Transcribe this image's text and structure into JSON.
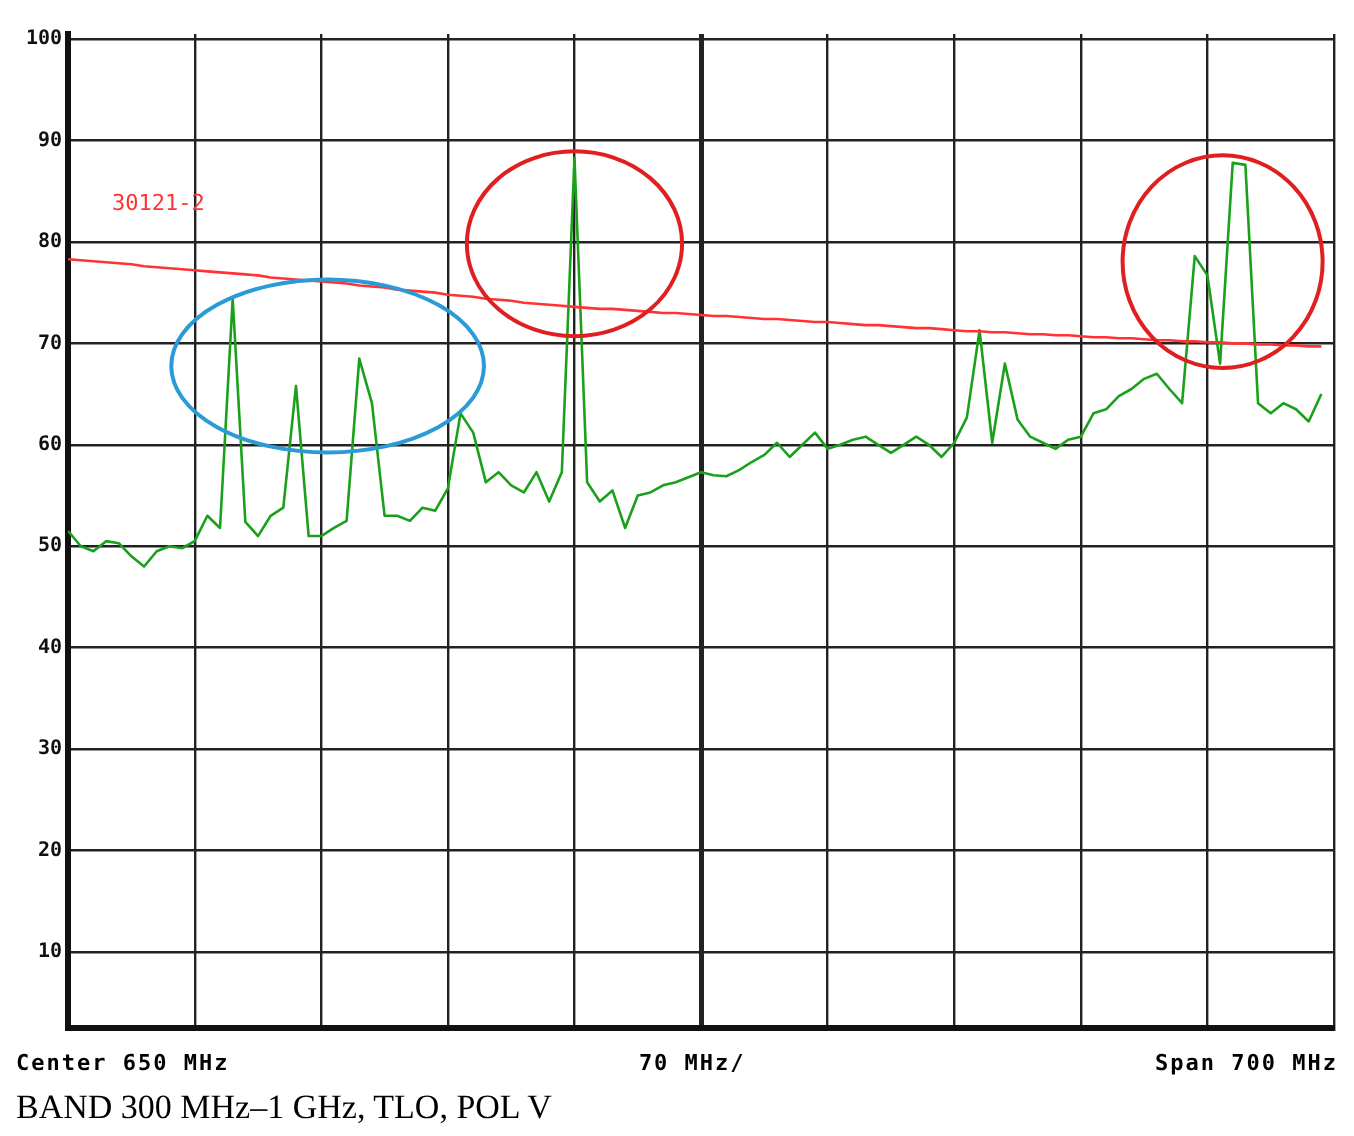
{
  "chart_data": {
    "type": "line",
    "categories": [
      null,
      null,
      null,
      null,
      null,
      null,
      null,
      null,
      null,
      null,
      null,
      null,
      null,
      null,
      null,
      null,
      null,
      null,
      null,
      null,
      null,
      null,
      null,
      null,
      null,
      null,
      null,
      null,
      null,
      null,
      null,
      null,
      null,
      null,
      null,
      null,
      null,
      null,
      null,
      null,
      null,
      null,
      null,
      null,
      null,
      null,
      null,
      null,
      null,
      null,
      null,
      null,
      null,
      null,
      null,
      null,
      null,
      null,
      null,
      null,
      null,
      null,
      null,
      null,
      null,
      null,
      null,
      null,
      null,
      null,
      null,
      null,
      null,
      null,
      null,
      null,
      null,
      null,
      null,
      null,
      null,
      null,
      null,
      null,
      null,
      null,
      null,
      null,
      null,
      null,
      null,
      null,
      null,
      null,
      null,
      null,
      null,
      null,
      null,
      null,
      null
    ],
    "ylim": [
      2.5,
      100.5
    ],
    "yticks": [
      10,
      20,
      30,
      40,
      50,
      60,
      70,
      80,
      90,
      100
    ],
    "tick_labels": "y",
    "grid": true,
    "legend": false,
    "marker": "none",
    "series": [
      {
        "color": "#1aa01a",
        "values": [
          51.5,
          50,
          49.5,
          50.5,
          50.3,
          49,
          48,
          49.5,
          50,
          49.8,
          50.5,
          53,
          51.8,
          74.4,
          52.4,
          51,
          53,
          53.8,
          65.8,
          51,
          51,
          51.8,
          52.5,
          68.5,
          64.1,
          53,
          53,
          52.5,
          53.8,
          53.5,
          55.7,
          63.1,
          61.2,
          56.3,
          57.3,
          56,
          55.3,
          57.3,
          54.4,
          57.3,
          88.3,
          56.3,
          54.4,
          55.5,
          51.8,
          55,
          55.3,
          56,
          56.3,
          56.8,
          57.3,
          57,
          56.9,
          57.5,
          58.3,
          59,
          60.2,
          58.8,
          60,
          61.2,
          59.6,
          60,
          60.5,
          60.8,
          60,
          59.2,
          60,
          60.8,
          60,
          58.8,
          60.2,
          62.7,
          71.3,
          60.2,
          68,
          62.5,
          60.8,
          60.2,
          59.6,
          60.5,
          60.8,
          63.1,
          63.5,
          64.8,
          65.5,
          66.5,
          67,
          65.5,
          64.1,
          78.6,
          76.7,
          68,
          87.8,
          87.6,
          64.1,
          63.1,
          64.1,
          63.5,
          62.3,
          65,
          null
        ]
      },
      {
        "name": "30121-2",
        "color": "#ff3333",
        "values": [
          78.3,
          78.2,
          78.1,
          78.0,
          77.9,
          77.8,
          77.6,
          77.5,
          77.4,
          77.3,
          77.2,
          77.1,
          77.0,
          76.9,
          76.8,
          76.7,
          76.5,
          76.4,
          76.3,
          76.2,
          76.1,
          76.0,
          75.9,
          75.7,
          75.6,
          75.5,
          75.3,
          75.2,
          75.1,
          75.0,
          74.8,
          74.7,
          74.6,
          74.4,
          74.3,
          74.2,
          74.0,
          73.9,
          73.8,
          73.7,
          73.6,
          73.5,
          73.4,
          73.4,
          73.3,
          73.2,
          73.1,
          73.0,
          73.0,
          72.9,
          72.8,
          72.7,
          72.7,
          72.6,
          72.5,
          72.4,
          72.4,
          72.3,
          72.2,
          72.1,
          72.1,
          72.0,
          71.9,
          71.8,
          71.8,
          71.7,
          71.6,
          71.5,
          71.5,
          71.4,
          71.3,
          71.2,
          71.2,
          71.1,
          71.1,
          71.0,
          70.9,
          70.9,
          70.8,
          70.8,
          70.7,
          70.6,
          70.6,
          70.5,
          70.5,
          70.4,
          70.3,
          70.3,
          70.2,
          70.2,
          70.1,
          70.1,
          70.0,
          70.0,
          69.9,
          69.9,
          69.8,
          69.8,
          69.7,
          69.7,
          null
        ]
      }
    ],
    "annotations": [
      "Center 650 MHz",
      "70 MHz/",
      "Span 700 MHz",
      "BAND 300 MHz–1 GHz, TLO, POL V"
    ]
  }
}
